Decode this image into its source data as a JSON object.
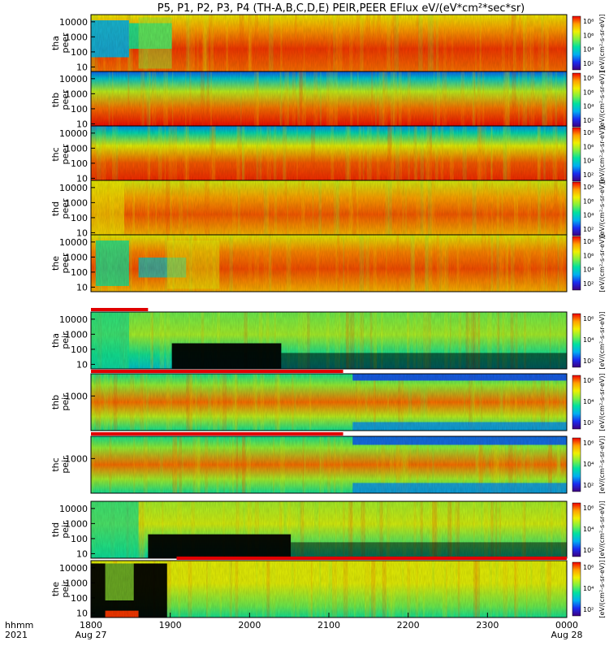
{
  "chart_data": {
    "type": "heatmap",
    "title": "P5, P1, P2, P3, P4 (TH-A,B,C,D,E) PEIR,PEER EFlux eV/(eV*cm²*sec*sr)",
    "time_axis": {
      "row_label": "hhmm",
      "year_label": "2021",
      "ticks": [
        "1800",
        "1900",
        "2000",
        "2100",
        "2200",
        "2300",
        "0000"
      ],
      "date_labels": [
        {
          "at": "1800",
          "text": "Aug 27"
        },
        {
          "at": "0000",
          "text": "Aug 28"
        }
      ],
      "range": [
        "2021-08-27 18:00",
        "2021-08-28 00:00"
      ]
    },
    "colorbar": {
      "label": "[eV/(cm²-s-sr-eV)]",
      "colors": [
        "#3f0080",
        "#1a2cf0",
        "#00b0f0",
        "#00e0a0",
        "#80f040",
        "#f0f000",
        "#ffa000",
        "#f00000"
      ],
      "electron_ticks": [
        "10²",
        "10⁴",
        "10⁶",
        "10⁸"
      ],
      "ion_ticks": [
        "10²",
        "10⁴",
        "10⁶"
      ]
    },
    "panels": [
      {
        "name": "tha peer",
        "label_1": "tha",
        "label_2": "peer",
        "species": "electron",
        "y_ticks": [
          "10000",
          "1000",
          "100",
          "10"
        ],
        "y_range_eV": [
          5,
          30000
        ]
      },
      {
        "name": "thb peer",
        "label_1": "thb",
        "label_2": "peer",
        "species": "electron",
        "y_ticks": [
          "10000",
          "1000",
          "100",
          "10"
        ],
        "y_range_eV": [
          5,
          30000
        ]
      },
      {
        "name": "thc peer",
        "label_1": "thc",
        "label_2": "peer",
        "species": "electron",
        "y_ticks": [
          "10000",
          "1000",
          "100",
          "10"
        ],
        "y_range_eV": [
          5,
          30000
        ]
      },
      {
        "name": "thd peer",
        "label_1": "thd",
        "label_2": "peer",
        "species": "electron",
        "y_ticks": [
          "10000",
          "1000",
          "100",
          "10"
        ],
        "y_range_eV": [
          5,
          30000
        ]
      },
      {
        "name": "the peer",
        "label_1": "the",
        "label_2": "peer",
        "species": "electron",
        "y_ticks": [
          "10000",
          "1000",
          "100",
          "10"
        ],
        "y_range_eV": [
          5,
          30000
        ]
      },
      {
        "name": "tha peir",
        "label_1": "tha",
        "label_2": "peir",
        "species": "ion",
        "y_ticks": [
          "10000",
          "1000",
          "100",
          "10"
        ],
        "y_range_eV": [
          5,
          30000
        ]
      },
      {
        "name": "thb peir",
        "label_1": "thb",
        "label_2": "peir",
        "species": "ion",
        "y_ticks": [
          "1000"
        ],
        "y_range_eV": [
          5,
          30000
        ]
      },
      {
        "name": "thc peir",
        "label_1": "thc",
        "label_2": "peir",
        "species": "ion",
        "y_ticks": [
          "1000"
        ],
        "y_range_eV": [
          5,
          30000
        ]
      },
      {
        "name": "thd peir",
        "label_1": "thd",
        "label_2": "peir",
        "species": "ion",
        "y_ticks": [
          "10000",
          "1000",
          "100",
          "10"
        ],
        "y_range_eV": [
          5,
          30000
        ]
      },
      {
        "name": "the peir",
        "label_1": "the",
        "label_2": "peir",
        "species": "ion",
        "y_ticks": [
          "10000",
          "1000",
          "100",
          "10"
        ],
        "y_range_eV": [
          5,
          30000
        ]
      }
    ]
  }
}
